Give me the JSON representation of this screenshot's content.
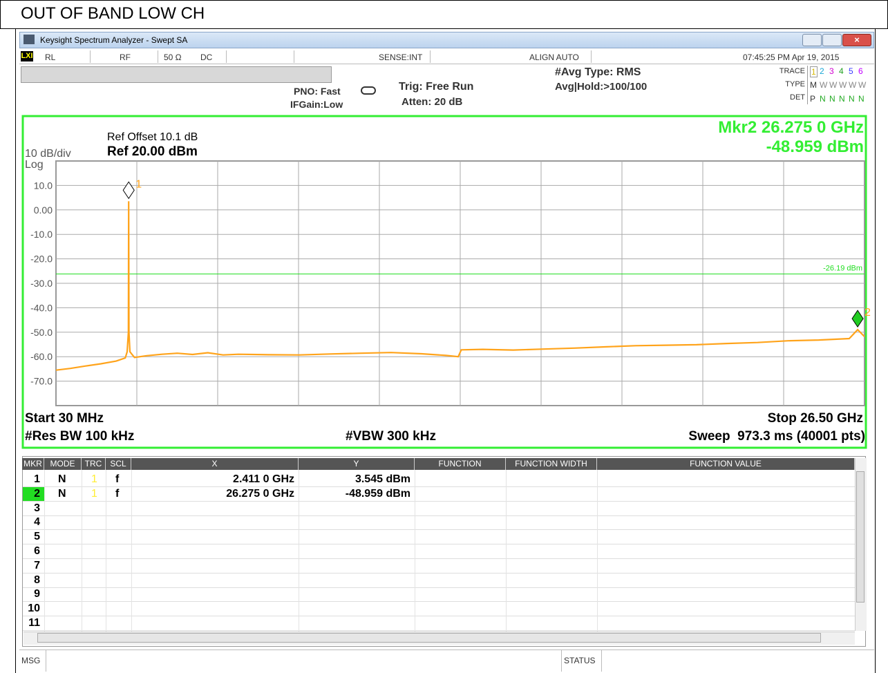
{
  "page_title": "OUT OF BAND LOW CH",
  "window": {
    "title": "Keysight Spectrum Analyzer - Swept SA"
  },
  "status_bar": {
    "items": [
      "RL",
      "RF",
      "50 Ω",
      "DC",
      "SENSE:INT",
      "ALIGN AUTO",
      "07:45:25 PM Apr 19, 2015"
    ]
  },
  "settings": {
    "pno": "PNO: Fast",
    "ifgain": "IFGain:Low",
    "trig": "Trig: Free Run",
    "atten": "Atten: 20 dB",
    "avg_type": "#Avg Type: RMS",
    "avg_hold": "Avg|Hold:>100/100"
  },
  "trace_panel": {
    "labels": [
      "TRACE",
      "TYPE",
      "DET"
    ],
    "trace": [
      "1",
      "2",
      "3",
      "4",
      "5",
      "6"
    ],
    "trace_colors": [
      "#d6b800",
      "#1aa7d6",
      "#d000d0",
      "#20a020",
      "#3a3aff",
      "#c000ff"
    ],
    "type": [
      "M",
      "W",
      "W",
      "W",
      "W",
      "W"
    ],
    "det": [
      "P",
      "N",
      "N",
      "N",
      "N",
      "N"
    ]
  },
  "chart_data": {
    "type": "line",
    "ref_offset": "Ref Offset 10.1 dB",
    "ref_level": "Ref 20.00 dBm",
    "scale": "10 dB/div",
    "scale_type": "Log",
    "marker_readout": [
      "Mkr2 26.275 0 GHz",
      "-48.959 dBm"
    ],
    "start": "Start 30 MHz",
    "stop": "Stop 26.50 GHz",
    "rbw": "#Res BW 100 kHz",
    "vbw": "#VBW 300 kHz",
    "sweep": "Sweep  973.3 ms (40001 pts)",
    "xlim": [
      0.03,
      26.5
    ],
    "xdivisions": 10,
    "ylim": [
      -80,
      20
    ],
    "yticks": [
      {
        "value": 10,
        "label": "10.0"
      },
      {
        "value": 0,
        "label": "0.00"
      },
      {
        "value": -10,
        "label": "-10.0"
      },
      {
        "value": -20,
        "label": "-20.0"
      },
      {
        "value": -30,
        "label": "-30.0"
      },
      {
        "value": -40,
        "label": "-40.0"
      },
      {
        "value": -50,
        "label": "-50.0"
      },
      {
        "value": -60,
        "label": "-60.0"
      },
      {
        "value": -70,
        "label": "-70.0"
      }
    ],
    "grid": true,
    "series": [
      {
        "color": "#ffa31a",
        "x": [
          0.03,
          0.5,
          1.0,
          1.5,
          2.0,
          2.3,
          2.36,
          2.4,
          2.411,
          2.42,
          2.45,
          2.6,
          3.0,
          3.5,
          4.0,
          4.5,
          5.0,
          5.5,
          6.0,
          7.0,
          8.0,
          9.0,
          10.0,
          11.0,
          12.0,
          12.8,
          13.2,
          13.3,
          14.0,
          15.0,
          16.0,
          17.0,
          18.0,
          19.0,
          20.0,
          21.0,
          22.0,
          23.0,
          24.0,
          25.0,
          26.0,
          26.275,
          26.5
        ],
        "values": [
          -65.5,
          -64.8,
          -63.8,
          -62.9,
          -61.8,
          -60.5,
          -58,
          -50,
          3.545,
          -50,
          -58,
          -60.3,
          -59.6,
          -59.0,
          -58.6,
          -59.1,
          -58.4,
          -59.3,
          -59.0,
          -59.2,
          -59.3,
          -58.9,
          -58.6,
          -58.3,
          -58.8,
          -59.5,
          -60.0,
          -57.2,
          -57.0,
          -57.3,
          -56.9,
          -56.5,
          -56.0,
          -55.5,
          -55.3,
          -55.1,
          -54.6,
          -54.2,
          -53.5,
          -53.2,
          -52.6,
          -48.959,
          -51.8
        ]
      }
    ],
    "display_line": {
      "value": -26.19,
      "label": "-26.19 dBm",
      "color": "#22dd22"
    },
    "markers": [
      {
        "label": "1",
        "x": 2.411,
        "y": 3.545,
        "color": "#ffffff",
        "label_color": "#ffa31a"
      },
      {
        "label": "2",
        "x": 26.275,
        "y": -48.959,
        "color": "#22cc22",
        "label_color": "#ffa31a"
      }
    ]
  },
  "marker_table": {
    "columns": [
      "MKR",
      "MODE",
      "TRC",
      "SCL",
      "X",
      "Y",
      "FUNCTION",
      "FUNCTION WIDTH",
      "FUNCTION VALUE"
    ],
    "rows": [
      {
        "mkr": "1",
        "mode": "N",
        "trc": "1",
        "scl": "f",
        "x": "2.411 0 GHz",
        "y": "3.545 dBm"
      },
      {
        "mkr": "2",
        "mode": "N",
        "trc": "1",
        "scl": "f",
        "x": "26.275 0 GHz",
        "y": "-48.959 dBm"
      },
      {
        "mkr": "3"
      },
      {
        "mkr": "4"
      },
      {
        "mkr": "5"
      },
      {
        "mkr": "6"
      },
      {
        "mkr": "7"
      },
      {
        "mkr": "8"
      },
      {
        "mkr": "9"
      },
      {
        "mkr": "10"
      },
      {
        "mkr": "11"
      }
    ]
  },
  "message_bar": {
    "msg": "MSG",
    "status": "STATUS"
  }
}
